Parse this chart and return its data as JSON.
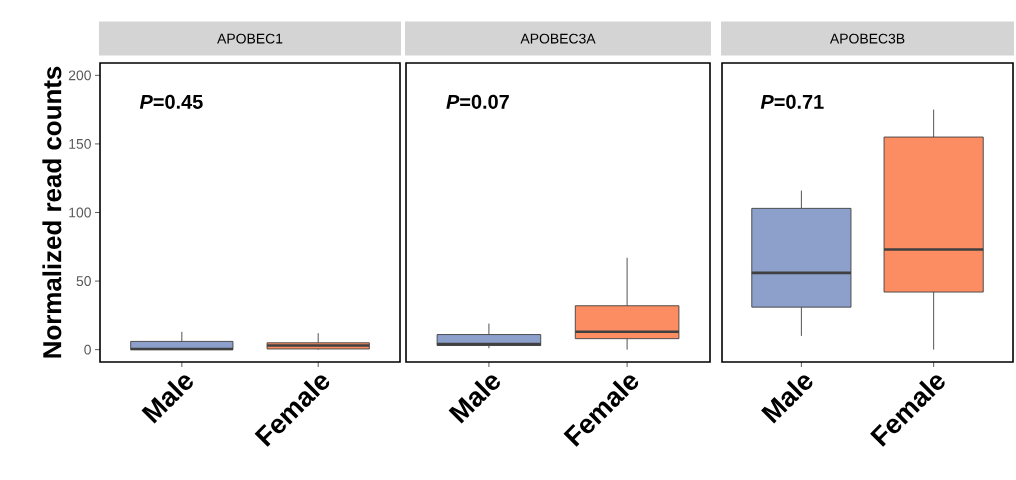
{
  "chart_data": [
    {
      "type": "box",
      "title": "APOBEC1",
      "ylabel": "Normalized read counts",
      "categories": [
        "Male",
        "Female"
      ],
      "colors": [
        "#8da0cb",
        "#fc8d62"
      ],
      "ylim": [
        -9,
        209
      ],
      "yticks": [
        0,
        50,
        100,
        150,
        200
      ],
      "annotations": [
        "*P*=0.45"
      ],
      "boxes": [
        {
          "low": 0,
          "q1": 0,
          "median": 0.5,
          "q3": 6,
          "high": 13
        },
        {
          "low": 0,
          "q1": 0.5,
          "median": 3,
          "q3": 5,
          "high": 12
        }
      ]
    },
    {
      "type": "box",
      "title": "APOBEC3A",
      "categories": [
        "Male",
        "Female"
      ],
      "colors": [
        "#8da0cb",
        "#fc8d62"
      ],
      "ylim": [
        -9,
        209
      ],
      "tick_labels": "x",
      "annotations": [
        "*P*=0.07"
      ],
      "boxes": [
        {
          "low": 1,
          "q1": 3,
          "median": 4,
          "q3": 11,
          "high": 19
        },
        {
          "low": 0,
          "q1": 8,
          "median": 13,
          "q3": 32,
          "high": 67
        }
      ]
    },
    {
      "type": "box",
      "title": "APOBEC3B",
      "categories": [
        "Male",
        "Female"
      ],
      "colors": [
        "#8da0cb",
        "#fc8d62"
      ],
      "ylim": [
        -9,
        209
      ],
      "tick_labels": "x",
      "annotations": [
        "*P*=0.71"
      ],
      "boxes": [
        {
          "low": 10,
          "q1": 31,
          "median": 56,
          "q3": 103,
          "high": 116
        },
        {
          "low": 0,
          "q1": 42,
          "median": 73,
          "q3": 155,
          "high": 175
        }
      ]
    }
  ]
}
